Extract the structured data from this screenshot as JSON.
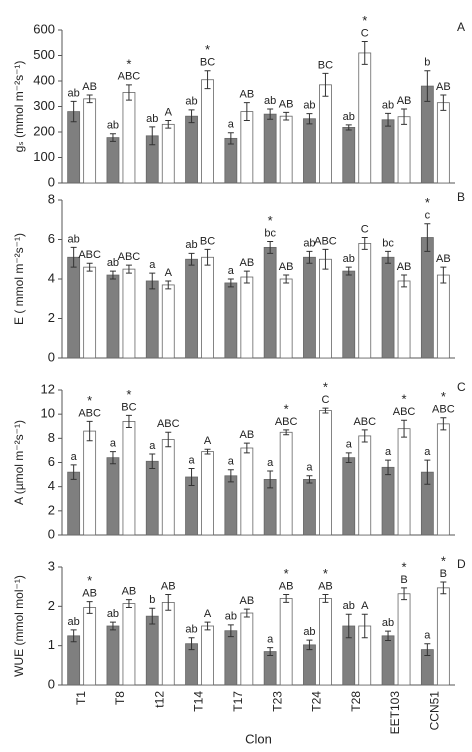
{
  "chart_data": [
    {
      "type": "bar",
      "panel": "A",
      "y_label": "gₛ (mmol m⁻²s⁻¹)",
      "ylim": [
        0,
        600
      ],
      "yticks": [
        0,
        100,
        200,
        300,
        400,
        500,
        600
      ],
      "series": [
        {
          "color": "#7f7f7f",
          "values": [
            280,
            178,
            185,
            262,
            175,
            270,
            252,
            218,
            248,
            380
          ],
          "errors": [
            40,
            15,
            35,
            25,
            22,
            20,
            20,
            10,
            25,
            60
          ],
          "letters": [
            "ab",
            "ab",
            "ab",
            "ab",
            "a",
            "ab",
            "ab",
            "ab",
            "ab",
            "b"
          ],
          "stars": [
            null,
            null,
            null,
            null,
            null,
            null,
            null,
            null,
            null,
            null
          ]
        },
        {
          "color": "#ffffff",
          "values": [
            330,
            355,
            230,
            405,
            280,
            262,
            385,
            510,
            260,
            315
          ],
          "errors": [
            15,
            30,
            15,
            35,
            35,
            15,
            45,
            45,
            30,
            30
          ],
          "letters": [
            "AB",
            "ABC",
            "A",
            "BC",
            "AB",
            "AB",
            "BC",
            "C",
            "AB",
            "AB"
          ],
          "stars": [
            null,
            "*",
            null,
            "*",
            null,
            null,
            null,
            "*",
            null,
            null
          ]
        }
      ]
    },
    {
      "type": "bar",
      "panel": "B",
      "y_label": "E ( mmol m⁻²s⁻¹)",
      "ylim": [
        0,
        8
      ],
      "yticks": [
        0,
        2,
        4,
        6,
        8
      ],
      "series": [
        {
          "color": "#7f7f7f",
          "values": [
            5.1,
            4.2,
            3.9,
            5.0,
            3.8,
            5.6,
            5.1,
            4.4,
            5.1,
            6.1
          ],
          "errors": [
            0.5,
            0.2,
            0.4,
            0.3,
            0.2,
            0.3,
            0.3,
            0.2,
            0.3,
            0.7
          ],
          "letters": [
            "ab",
            "ab",
            "a",
            "ab",
            "a",
            "bc",
            "ab",
            "ab",
            "bc",
            "c"
          ],
          "stars": [
            null,
            null,
            null,
            null,
            null,
            "*",
            null,
            null,
            null,
            "*"
          ]
        },
        {
          "color": "#ffffff",
          "values": [
            4.6,
            4.5,
            3.7,
            5.1,
            4.1,
            4.0,
            5.0,
            5.8,
            3.9,
            4.2
          ],
          "errors": [
            0.2,
            0.2,
            0.2,
            0.4,
            0.3,
            0.2,
            0.5,
            0.3,
            0.3,
            0.4
          ],
          "letters": [
            "ABC",
            "ABC",
            "A",
            "BC",
            "AB",
            "AB",
            "ABC",
            "C",
            "AB",
            "AB"
          ],
          "stars": [
            null,
            null,
            null,
            null,
            null,
            null,
            null,
            null,
            null,
            null
          ]
        }
      ]
    },
    {
      "type": "bar",
      "panel": "C",
      "y_label": "A (µmol m⁻²s⁻¹)",
      "ylim": [
        0,
        12
      ],
      "yticks": [
        0,
        2,
        4,
        6,
        8,
        10,
        12
      ],
      "series": [
        {
          "color": "#7f7f7f",
          "values": [
            5.2,
            6.4,
            6.1,
            4.8,
            4.9,
            4.6,
            4.6,
            6.4,
            5.6,
            5.2
          ],
          "errors": [
            0.6,
            0.5,
            0.6,
            0.7,
            0.5,
            0.7,
            0.3,
            0.4,
            0.6,
            1.0
          ],
          "letters": [
            "a",
            "a",
            "a",
            "a",
            "a",
            "a",
            "a",
            "a",
            "a",
            "a"
          ],
          "stars": [
            null,
            null,
            null,
            null,
            null,
            null,
            null,
            null,
            null,
            null
          ]
        },
        {
          "color": "#ffffff",
          "values": [
            8.6,
            9.4,
            7.9,
            6.9,
            7.2,
            8.5,
            10.3,
            8.2,
            8.8,
            9.2
          ],
          "errors": [
            0.8,
            0.5,
            0.6,
            0.2,
            0.4,
            0.2,
            0.2,
            0.5,
            0.7,
            0.5
          ],
          "letters": [
            "ABC",
            "BC",
            "ABC",
            "A",
            "AB",
            "ABC",
            "C",
            "ABC",
            "ABC",
            "ABC"
          ],
          "stars": [
            "*",
            "*",
            null,
            null,
            null,
            "*",
            "*",
            null,
            "*",
            "*"
          ]
        }
      ]
    },
    {
      "type": "bar",
      "panel": "D",
      "y_label": "WUE (mmol mol⁻¹)",
      "x_label": "Clon",
      "ylim": [
        0,
        3
      ],
      "yticks": [
        0,
        1,
        2,
        3
      ],
      "categories": [
        "T1",
        "T8",
        "t12",
        "T14",
        "T17",
        "T23",
        "T24",
        "T28",
        "EET103",
        "CCN51"
      ],
      "series": [
        {
          "color": "#7f7f7f",
          "values": [
            1.25,
            1.5,
            1.75,
            1.05,
            1.38,
            0.85,
            1.02,
            1.5,
            1.25,
            0.9
          ],
          "errors": [
            0.15,
            0.1,
            0.2,
            0.15,
            0.15,
            0.1,
            0.12,
            0.3,
            0.12,
            0.15
          ],
          "letters": [
            "ab",
            "ab",
            "b",
            "ab",
            "ab",
            "a",
            "ab",
            "ab",
            "ab",
            "a"
          ],
          "stars": [
            null,
            null,
            null,
            null,
            null,
            null,
            null,
            null,
            null,
            null
          ]
        },
        {
          "color": "#ffffff",
          "values": [
            1.97,
            2.07,
            2.1,
            1.5,
            1.83,
            2.2,
            2.2,
            1.5,
            2.32,
            2.47
          ],
          "errors": [
            0.15,
            0.1,
            0.2,
            0.1,
            0.1,
            0.1,
            0.1,
            0.3,
            0.15,
            0.15
          ],
          "letters": [
            "AB",
            "AB",
            "AB",
            "A",
            "AB",
            "AB",
            "AB",
            "A",
            "B",
            "B"
          ],
          "stars": [
            "*",
            null,
            null,
            null,
            null,
            "*",
            "*",
            null,
            "*",
            "*"
          ]
        }
      ]
    }
  ]
}
